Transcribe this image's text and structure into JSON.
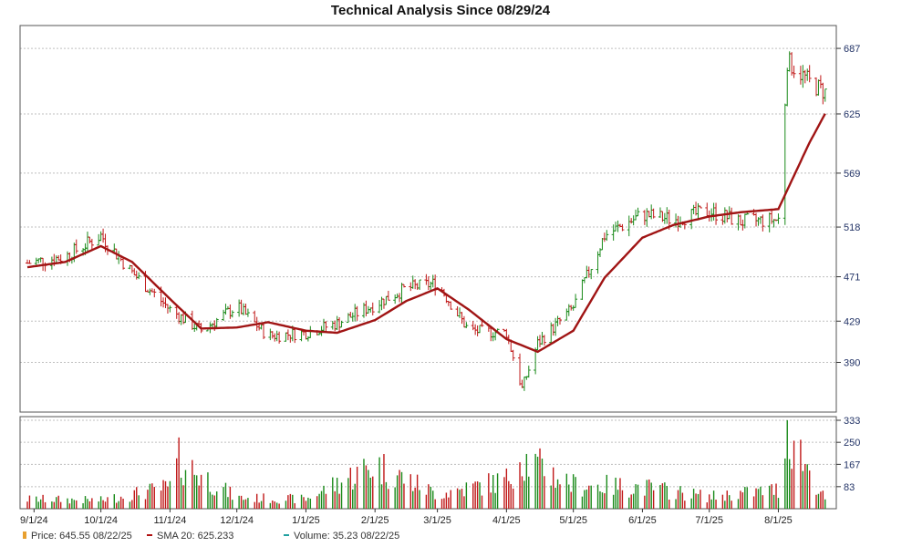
{
  "chart_data": {
    "type": "line",
    "title": "Technical Analysis Since 08/29/24",
    "price_panel": {
      "y_ticks": [
        390,
        429,
        471,
        518,
        569,
        625,
        687
      ],
      "ylim": [
        343,
        700
      ],
      "sma_label": "SMA 20",
      "price_series": {
        "name": "Price",
        "x": [
          "8/29/24",
          "9/15/24",
          "10/1/24",
          "10/15/24",
          "11/1/24",
          "11/15/24",
          "12/1/24",
          "12/15/24",
          "1/1/25",
          "1/15/25",
          "2/1/25",
          "2/15/25",
          "3/1/25",
          "3/15/25",
          "4/1/25",
          "4/8/25",
          "4/15/25",
          "5/1/25",
          "5/15/25",
          "6/1/25",
          "6/15/25",
          "7/1/25",
          "7/15/25",
          "8/1/25",
          "8/5/25",
          "8/15/25",
          "8/22/25"
        ],
        "values": [
          484,
          490,
          510,
          475,
          440,
          420,
          443,
          415,
          418,
          427,
          445,
          460,
          465,
          420,
          418,
          365,
          408,
          442,
          510,
          530,
          525,
          533,
          523,
          525,
          675,
          655,
          645.55
        ]
      },
      "sma_series": {
        "name": "SMA 20",
        "x": [
          "8/29/24",
          "9/15/24",
          "10/1/24",
          "10/15/24",
          "11/1/24",
          "11/15/24",
          "12/1/24",
          "12/15/24",
          "1/1/25",
          "1/15/25",
          "2/1/25",
          "2/15/25",
          "3/1/25",
          "3/15/25",
          "4/1/25",
          "4/15/25",
          "5/1/25",
          "5/15/25",
          "6/1/25",
          "6/15/25",
          "7/1/25",
          "7/15/25",
          "8/1/25",
          "8/15/25",
          "8/22/25"
        ],
        "values": [
          480,
          485,
          500,
          485,
          450,
          422,
          423,
          428,
          420,
          418,
          430,
          448,
          460,
          440,
          412,
          400,
          420,
          470,
          508,
          520,
          528,
          532,
          535,
          598,
          625.233
        ]
      }
    },
    "volume_panel": {
      "y_ticks": [
        83,
        167,
        250,
        333
      ],
      "ylim": [
        0,
        333
      ],
      "volume_series": {
        "name": "Volume",
        "x": [
          "9/1/24",
          "10/1/24",
          "11/1/24",
          "11/5/24",
          "12/1/24",
          "1/1/25",
          "2/1/25",
          "3/1/25",
          "4/1/25",
          "4/7/25",
          "5/1/25",
          "6/1/25",
          "7/1/25",
          "8/1/25",
          "8/5/25",
          "8/22/25"
        ],
        "values": [
          40,
          35,
          90,
          200,
          45,
          40,
          185,
          60,
          120,
          215,
          100,
          90,
          50,
          80,
          333,
          35.23
        ]
      }
    },
    "x_ticks": [
      "9/1/24",
      "10/1/24",
      "11/1/24",
      "12/1/24",
      "1/1/25",
      "2/1/25",
      "3/1/25",
      "4/1/25",
      "5/1/25",
      "6/1/25",
      "7/1/25",
      "8/1/25"
    ],
    "legend": {
      "placement": "bottom-left",
      "items": [
        {
          "label": "Price: 645.55  08/22/25",
          "color": "#e8a030"
        },
        {
          "label": "SMA 20: 625.233",
          "color": "#b01010"
        },
        {
          "label": "Volume: 35.23  08/22/25",
          "color": "#20a0a0"
        }
      ]
    },
    "colors": {
      "up": "#1a8a1a",
      "down": "#c01818",
      "sma": "#a01414",
      "axis_text": "#223366"
    },
    "grid": true
  }
}
